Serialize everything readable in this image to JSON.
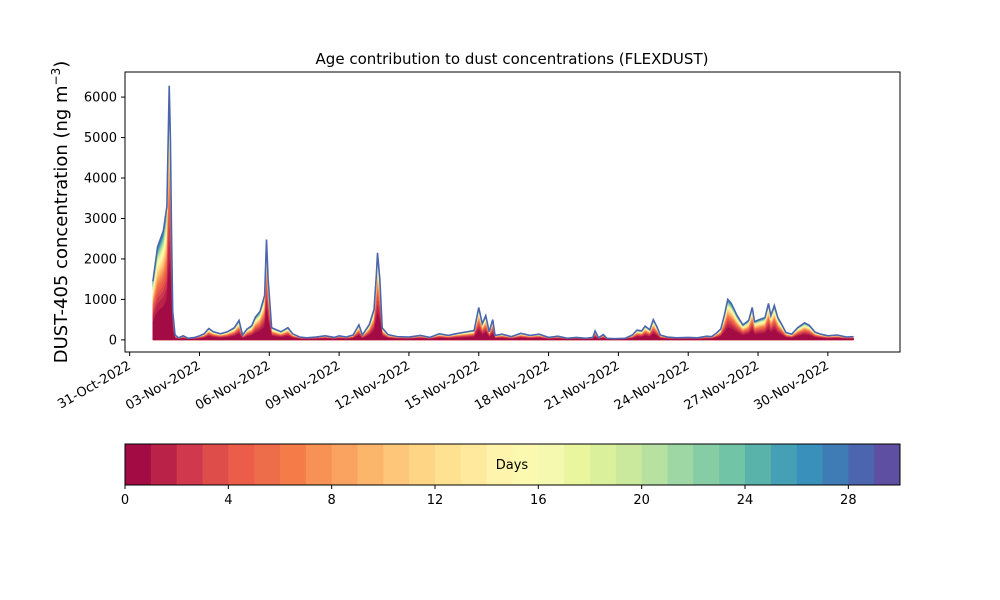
{
  "chart_data": {
    "type": "area",
    "title": "Age contribution to dust concentrations (FLEXDUST)",
    "ylabel": "DUST-405 concentration (ng m",
    "ylabel_sup": "−3",
    "ylabel_close": ")",
    "xlabel": "",
    "ylim": [
      -300,
      6620
    ],
    "xlim": [
      -0.2,
      33.1
    ],
    "yticks": [
      0,
      1000,
      2000,
      3000,
      4000,
      5000,
      6000
    ],
    "yticklabels": [
      "0",
      "1000",
      "2000",
      "3000",
      "4000",
      "5000",
      "6000"
    ],
    "xticks": [
      0,
      3,
      6,
      9,
      12,
      15,
      18,
      21,
      24,
      27,
      30
    ],
    "xticklabels": [
      "31-Oct-2022",
      "03-Nov-2022",
      "06-Nov-2022",
      "09-Nov-2022",
      "12-Nov-2022",
      "15-Nov-2022",
      "18-Nov-2022",
      "21-Nov-2022",
      "24-Nov-2022",
      "27-Nov-2022",
      "30-Nov-2022"
    ],
    "x_units": "days since 31-Oct-2022",
    "total_concentration": [
      [
        1.0,
        1450
      ],
      [
        1.2,
        2300
      ],
      [
        1.45,
        2700
      ],
      [
        1.6,
        3300
      ],
      [
        1.65,
        4800
      ],
      [
        1.7,
        6280
      ],
      [
        1.75,
        5000
      ],
      [
        1.8,
        2600
      ],
      [
        1.85,
        700
      ],
      [
        1.95,
        120
      ],
      [
        2.1,
        50
      ],
      [
        2.3,
        100
      ],
      [
        2.5,
        40
      ],
      [
        2.8,
        60
      ],
      [
        3.0,
        100
      ],
      [
        3.2,
        150
      ],
      [
        3.4,
        280
      ],
      [
        3.6,
        200
      ],
      [
        3.9,
        150
      ],
      [
        4.2,
        200
      ],
      [
        4.5,
        300
      ],
      [
        4.7,
        480
      ],
      [
        4.85,
        120
      ],
      [
        5.05,
        270
      ],
      [
        5.25,
        350
      ],
      [
        5.4,
        560
      ],
      [
        5.6,
        700
      ],
      [
        5.8,
        1100
      ],
      [
        5.88,
        2480
      ],
      [
        5.95,
        1500
      ],
      [
        6.1,
        300
      ],
      [
        6.5,
        200
      ],
      [
        6.8,
        300
      ],
      [
        7.0,
        150
      ],
      [
        7.3,
        70
      ],
      [
        7.6,
        50
      ],
      [
        8.0,
        70
      ],
      [
        8.4,
        100
      ],
      [
        8.8,
        60
      ],
      [
        9.0,
        100
      ],
      [
        9.3,
        70
      ],
      [
        9.6,
        120
      ],
      [
        9.85,
        370
      ],
      [
        10.0,
        120
      ],
      [
        10.3,
        380
      ],
      [
        10.5,
        750
      ],
      [
        10.6,
        1600
      ],
      [
        10.65,
        2150
      ],
      [
        10.75,
        1500
      ],
      [
        10.85,
        300
      ],
      [
        11.1,
        130
      ],
      [
        11.5,
        80
      ],
      [
        12.0,
        70
      ],
      [
        12.5,
        110
      ],
      [
        12.9,
        60
      ],
      [
        13.3,
        150
      ],
      [
        13.7,
        110
      ],
      [
        14.0,
        150
      ],
      [
        14.5,
        200
      ],
      [
        14.8,
        230
      ],
      [
        15.0,
        800
      ],
      [
        15.15,
        400
      ],
      [
        15.3,
        600
      ],
      [
        15.45,
        200
      ],
      [
        15.6,
        500
      ],
      [
        15.7,
        110
      ],
      [
        16.0,
        140
      ],
      [
        16.4,
        80
      ],
      [
        16.8,
        160
      ],
      [
        17.2,
        110
      ],
      [
        17.6,
        140
      ],
      [
        18.0,
        60
      ],
      [
        18.4,
        90
      ],
      [
        18.8,
        40
      ],
      [
        19.2,
        60
      ],
      [
        19.6,
        40
      ],
      [
        19.9,
        60
      ],
      [
        20.0,
        220
      ],
      [
        20.15,
        50
      ],
      [
        20.35,
        130
      ],
      [
        20.5,
        40
      ],
      [
        20.8,
        30
      ],
      [
        21.3,
        40
      ],
      [
        21.6,
        120
      ],
      [
        21.8,
        240
      ],
      [
        22.0,
        220
      ],
      [
        22.15,
        340
      ],
      [
        22.35,
        250
      ],
      [
        22.5,
        500
      ],
      [
        22.65,
        330
      ],
      [
        22.8,
        120
      ],
      [
        23.1,
        70
      ],
      [
        23.5,
        50
      ],
      [
        24.0,
        60
      ],
      [
        24.4,
        50
      ],
      [
        24.8,
        90
      ],
      [
        25.0,
        80
      ],
      [
        25.2,
        160
      ],
      [
        25.4,
        270
      ],
      [
        25.55,
        600
      ],
      [
        25.7,
        1000
      ],
      [
        25.85,
        900
      ],
      [
        26.1,
        600
      ],
      [
        26.35,
        370
      ],
      [
        26.6,
        480
      ],
      [
        26.75,
        800
      ],
      [
        26.85,
        450
      ],
      [
        27.05,
        500
      ],
      [
        27.3,
        550
      ],
      [
        27.45,
        900
      ],
      [
        27.55,
        600
      ],
      [
        27.7,
        850
      ],
      [
        27.85,
        550
      ],
      [
        28.0,
        400
      ],
      [
        28.2,
        180
      ],
      [
        28.45,
        140
      ],
      [
        28.7,
        300
      ],
      [
        29.0,
        420
      ],
      [
        29.2,
        360
      ],
      [
        29.45,
        190
      ],
      [
        29.7,
        140
      ],
      [
        30.0,
        100
      ],
      [
        30.4,
        120
      ],
      [
        30.8,
        70
      ],
      [
        31.1,
        80
      ]
    ],
    "colorbar": {
      "label": "Days",
      "range": [
        0,
        30
      ],
      "ticks": [
        0,
        4,
        8,
        12,
        16,
        20,
        24,
        28
      ],
      "ticklabels": [
        "0",
        "4",
        "8",
        "12",
        "16",
        "20",
        "24",
        "28"
      ],
      "bins": 30,
      "colormap": "Spectral",
      "colors": [
        "#a20b44",
        "#bb2248",
        "#d0384e",
        "#df4d4b",
        "#eb5d49",
        "#ed6c4a",
        "#f57b49",
        "#f89154",
        "#faa361",
        "#fcb66c",
        "#fdc678",
        "#fed485",
        "#fee291",
        "#fee99d",
        "#fff4ac",
        "#fbf8b0",
        "#f5f9b0",
        "#eaf69e",
        "#dbf09b",
        "#cbe99c",
        "#b6e1a1",
        "#9ed7a4",
        "#86cda5",
        "#71c4a6",
        "#5ab3aa",
        "#46a0b5",
        "#3990bb",
        "#3f7cb6",
        "#4b66ae",
        "#5e4fa2"
      ]
    },
    "frame_color": "#000000"
  }
}
